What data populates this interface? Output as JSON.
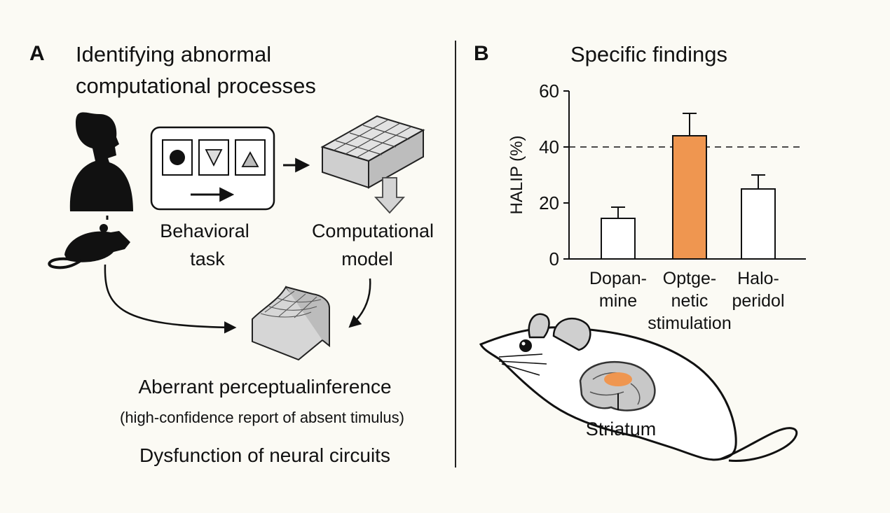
{
  "panel_a": {
    "letter": "A",
    "title_lines": [
      "Identifying abnormal",
      "computational processes"
    ],
    "task_label_lines": [
      "Behavioral",
      "task"
    ],
    "model_label_lines": [
      "Computational",
      "model"
    ],
    "caption_main": "Aberrant perceptualinference",
    "caption_sub": "(high-confidence report of absent timulus)",
    "caption_bottom": "Dysfunction of neural circuits",
    "icons": [
      "person-silhouette-icon",
      "mouse-icon",
      "task-screen-icon",
      "model-cube-icon",
      "surface-plot-icon"
    ]
  },
  "panel_b": {
    "letter": "B",
    "title": "Specific findings",
    "brain_label": "Striatum",
    "accent_color": "#ef9650"
  },
  "chart_data": {
    "type": "bar",
    "ylabel": "HALIP (%)",
    "ylim": [
      0,
      60
    ],
    "yticks": [
      0,
      20,
      40,
      60
    ],
    "reference_line": 40,
    "categories": [
      {
        "lines": [
          "Dopan-",
          "mine"
        ]
      },
      {
        "lines": [
          "Optge-",
          "netic",
          "stimulation"
        ]
      },
      {
        "lines": [
          "Halo-",
          "peridol"
        ]
      }
    ],
    "values": [
      14.5,
      44,
      25
    ],
    "errors": [
      4,
      8,
      5
    ],
    "highlight_index": 1,
    "bar_colors": [
      "#ffffff",
      "#ef9650",
      "#ffffff"
    ]
  }
}
